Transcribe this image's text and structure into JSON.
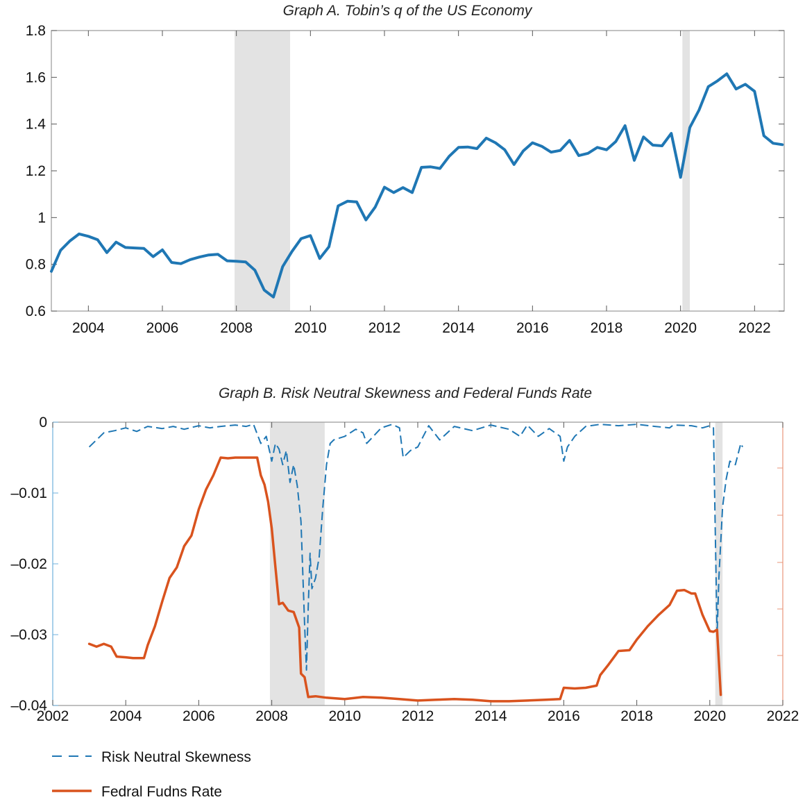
{
  "chart_data": [
    {
      "type": "line",
      "title": "Graph A. Tobin’s q of the US Economy",
      "xlabel": "",
      "ylabel": "",
      "xlim": [
        2003.0,
        2022.8
      ],
      "ylim": [
        0.6,
        1.8
      ],
      "yticks": [
        0.6,
        0.8,
        1,
        1.2,
        1.4,
        1.6,
        1.8
      ],
      "ytick_labels": [
        "0.6",
        "0.8",
        "1",
        "1.2",
        "1.4",
        "1.6",
        "1.8"
      ],
      "xticks": [
        2004,
        2006,
        2008,
        2010,
        2012,
        2014,
        2016,
        2018,
        2020,
        2022
      ],
      "xtick_labels": [
        "2004",
        "2006",
        "2008",
        "2010",
        "2012",
        "2014",
        "2016",
        "2018",
        "2020",
        "2022"
      ],
      "grid": false,
      "recession_bands": [
        [
          2007.95,
          2009.45
        ],
        [
          2020.05,
          2020.25
        ]
      ],
      "series": [
        {
          "color": "#1f77b4",
          "x": [
            2003.0,
            2003.25,
            2003.5,
            2003.75,
            2004.0,
            2004.25,
            2004.5,
            2004.75,
            2005.0,
            2005.25,
            2005.5,
            2005.75,
            2006.0,
            2006.25,
            2006.5,
            2006.75,
            2007.0,
            2007.25,
            2007.5,
            2007.75,
            2008.0,
            2008.25,
            2008.5,
            2008.75,
            2009.0,
            2009.25,
            2009.5,
            2009.75,
            2010.0,
            2010.25,
            2010.5,
            2010.75,
            2011.0,
            2011.25,
            2011.5,
            2011.75,
            2012.0,
            2012.25,
            2012.5,
            2012.75,
            2013.0,
            2013.25,
            2013.5,
            2013.75,
            2014.0,
            2014.25,
            2014.5,
            2014.75,
            2015.0,
            2015.25,
            2015.5,
            2015.75,
            2016.0,
            2016.25,
            2016.5,
            2016.75,
            2017.0,
            2017.25,
            2017.5,
            2017.75,
            2018.0,
            2018.25,
            2018.5,
            2018.75,
            2019.0,
            2019.25,
            2019.5,
            2019.75,
            2020.0,
            2020.25,
            2020.5,
            2020.75,
            2021.0,
            2021.25,
            2021.5,
            2021.75,
            2022.0,
            2022.25,
            2022.5,
            2022.75
          ],
          "values": [
            0.77,
            0.86,
            0.9,
            0.93,
            0.92,
            0.905,
            0.85,
            0.895,
            0.872,
            0.87,
            0.868,
            0.833,
            0.862,
            0.808,
            0.803,
            0.82,
            0.831,
            0.84,
            0.843,
            0.815,
            0.813,
            0.81,
            0.775,
            0.69,
            0.66,
            0.79,
            0.855,
            0.91,
            0.923,
            0.825,
            0.875,
            1.05,
            1.07,
            1.067,
            0.99,
            1.045,
            1.13,
            1.107,
            1.128,
            1.107,
            1.215,
            1.217,
            1.21,
            1.262,
            1.3,
            1.302,
            1.295,
            1.34,
            1.32,
            1.29,
            1.227,
            1.285,
            1.32,
            1.305,
            1.28,
            1.287,
            1.33,
            1.265,
            1.275,
            1.3,
            1.29,
            1.325,
            1.393,
            1.245,
            1.345,
            1.31,
            1.307,
            1.36,
            1.172,
            1.385,
            1.46,
            1.56,
            1.585,
            1.615,
            1.55,
            1.57,
            1.54,
            1.35,
            1.318,
            1.312
          ]
        }
      ]
    },
    {
      "type": "line",
      "title": "Graph B. Risk Neutral Skewness and Federal Funds Rate",
      "xlabel": "",
      "ylabel": "",
      "xlim": [
        2002,
        2022
      ],
      "ylim": [
        -0.04,
        0
      ],
      "yticks": [
        -0.04,
        -0.03,
        -0.02,
        -0.01,
        0
      ],
      "ytick_labels": [
        "–0.04",
        "–0.03",
        "–0.02",
        "–0.01",
        "0"
      ],
      "xticks": [
        2002,
        2004,
        2006,
        2008,
        2010,
        2012,
        2014,
        2016,
        2018,
        2020,
        2022
      ],
      "xtick_labels": [
        "2002",
        "2004",
        "2006",
        "2008",
        "2010",
        "2012",
        "2014",
        "2016",
        "2018",
        "2020",
        "2022"
      ],
      "grid": false,
      "legend_position": "bottom-left",
      "recession_bands": [
        [
          2007.95,
          2009.45
        ],
        [
          2020.15,
          2020.35
        ]
      ],
      "left_axis_color": "#6fb0dc",
      "right_axis_color": "#e8957a",
      "series": [
        {
          "name": "Risk Neutral Skewness",
          "color": "#1f77b4",
          "style": "dashed",
          "x": [
            2003.0,
            2003.2,
            2003.4,
            2003.7,
            2004.0,
            2004.3,
            2004.6,
            2005.0,
            2005.3,
            2005.6,
            2006.0,
            2006.3,
            2006.6,
            2007.0,
            2007.3,
            2007.5,
            2007.7,
            2007.85,
            2008.0,
            2008.1,
            2008.2,
            2008.3,
            2008.4,
            2008.5,
            2008.6,
            2008.7,
            2008.8,
            2008.9,
            2008.95,
            2009.0,
            2009.05,
            2009.1,
            2009.2,
            2009.3,
            2009.4,
            2009.5,
            2009.6,
            2009.7,
            2010.0,
            2010.3,
            2010.5,
            2010.6,
            2011.0,
            2011.3,
            2011.5,
            2011.6,
            2011.8,
            2012.0,
            2012.3,
            2012.6,
            2013.0,
            2013.5,
            2014.0,
            2014.5,
            2014.8,
            2015.0,
            2015.3,
            2015.6,
            2015.9,
            2016.0,
            2016.1,
            2016.3,
            2016.6,
            2017.0,
            2017.5,
            2018.0,
            2018.5,
            2018.9,
            2019.0,
            2019.5,
            2019.8,
            2020.0,
            2020.1,
            2020.2,
            2020.25,
            2020.35,
            2020.45,
            2020.55,
            2020.7,
            2020.85,
            2020.9
          ],
          "values": [
            -0.0035,
            -0.0025,
            -0.0015,
            -0.0012,
            -0.0008,
            -0.0013,
            -0.0006,
            -0.0009,
            -0.0006,
            -0.001,
            -0.0005,
            -0.0008,
            -0.0006,
            -0.0004,
            -0.0006,
            -0.0003,
            -0.003,
            -0.002,
            -0.0055,
            -0.003,
            -0.0038,
            -0.006,
            -0.004,
            -0.0085,
            -0.006,
            -0.009,
            -0.014,
            -0.0285,
            -0.035,
            -0.026,
            -0.0185,
            -0.0235,
            -0.022,
            -0.019,
            -0.012,
            -0.006,
            -0.003,
            -0.0025,
            -0.002,
            -0.001,
            -0.0015,
            -0.003,
            -0.0008,
            -0.0003,
            -0.0008,
            -0.005,
            -0.004,
            -0.0035,
            -0.0005,
            -0.0025,
            -0.0006,
            -0.0012,
            -0.0004,
            -0.001,
            -0.002,
            -0.0004,
            -0.002,
            -0.0009,
            -0.002,
            -0.0055,
            -0.0035,
            -0.002,
            -0.0006,
            -0.0003,
            -0.0005,
            -0.0003,
            -0.0006,
            -0.0008,
            -0.0004,
            -0.0005,
            -0.0008,
            -0.0005,
            -0.0008,
            -0.03,
            -0.022,
            -0.012,
            -0.008,
            -0.0055,
            -0.006,
            -0.003,
            -0.0035
          ]
        },
        {
          "name": "Fedral Fudns Rate",
          "color": "#d9531e",
          "style": "solid",
          "x": [
            2003.0,
            2003.2,
            2003.4,
            2003.6,
            2003.75,
            2004.0,
            2004.2,
            2004.5,
            2004.6,
            2004.8,
            2005.0,
            2005.2,
            2005.4,
            2005.6,
            2005.8,
            2006.0,
            2006.2,
            2006.4,
            2006.6,
            2006.8,
            2007.0,
            2007.3,
            2007.6,
            2007.7,
            2007.8,
            2007.9,
            2008.0,
            2008.1,
            2008.2,
            2008.3,
            2008.45,
            2008.6,
            2008.75,
            2008.8,
            2008.9,
            2009.0,
            2009.2,
            2009.5,
            2010.0,
            2010.5,
            2011.0,
            2011.5,
            2012.0,
            2012.5,
            2013.0,
            2013.5,
            2014.0,
            2014.5,
            2015.0,
            2015.5,
            2015.9,
            2016.0,
            2016.3,
            2016.6,
            2016.9,
            2017.0,
            2017.2,
            2017.5,
            2017.8,
            2018.0,
            2018.3,
            2018.6,
            2018.9,
            2019.1,
            2019.3,
            2019.5,
            2019.6,
            2019.8,
            2020.0,
            2020.1,
            2020.2,
            2020.3
          ],
          "values": [
            -0.0313,
            -0.0317,
            -0.0313,
            -0.0317,
            -0.0331,
            -0.0332,
            -0.0333,
            -0.0333,
            -0.0315,
            -0.0288,
            -0.0253,
            -0.022,
            -0.0205,
            -0.0175,
            -0.016,
            -0.0123,
            -0.0095,
            -0.0075,
            -0.005,
            -0.0051,
            -0.005,
            -0.005,
            -0.005,
            -0.0075,
            -0.0088,
            -0.0112,
            -0.015,
            -0.0205,
            -0.0257,
            -0.0255,
            -0.0266,
            -0.0268,
            -0.029,
            -0.0355,
            -0.036,
            -0.0388,
            -0.0387,
            -0.0389,
            -0.0391,
            -0.0388,
            -0.0389,
            -0.0391,
            -0.0393,
            -0.0392,
            -0.0391,
            -0.0392,
            -0.0394,
            -0.0394,
            -0.0393,
            -0.0392,
            -0.0391,
            -0.0375,
            -0.0376,
            -0.0375,
            -0.0372,
            -0.0357,
            -0.0344,
            -0.0323,
            -0.0322,
            -0.0307,
            -0.0288,
            -0.0272,
            -0.0258,
            -0.0238,
            -0.0237,
            -0.0242,
            -0.0242,
            -0.0272,
            -0.0295,
            -0.0296,
            -0.0293,
            -0.0385
          ]
        }
      ]
    }
  ]
}
